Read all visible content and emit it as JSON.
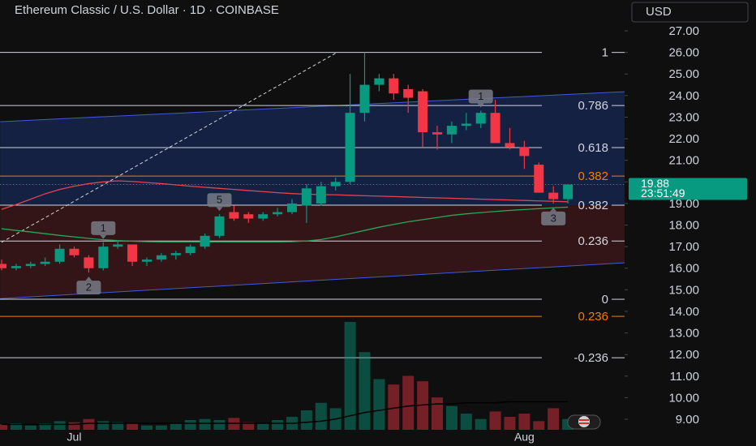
{
  "chart_data": {
    "type": "candlestick",
    "title": "Ethereum Classic / U.S. Dollar · 1D · COINBASE",
    "currency_button": "USD",
    "categories": [
      null,
      null,
      null,
      null,
      null,
      "Jul",
      null,
      null,
      null,
      null,
      null,
      null,
      null,
      null,
      null,
      null,
      null,
      null,
      null,
      null,
      null,
      null,
      null,
      null,
      null,
      null,
      null,
      null,
      null,
      null,
      null,
      null,
      null,
      null,
      null,
      null,
      "Aug",
      null,
      null,
      null
    ],
    "open": [
      16.2,
      16.0,
      16.1,
      16.2,
      16.3,
      16.9,
      16.5,
      16.0,
      17.0,
      17.1,
      16.3,
      16.4,
      16.6,
      16.7,
      17.0,
      17.5,
      18.6,
      18.5,
      18.3,
      18.5,
      18.6,
      18.9,
      19.0,
      19.8,
      20.0,
      23.2,
      24.5,
      24.8,
      24.3,
      24.2,
      22.3,
      22.2,
      22.6,
      22.7,
      23.2,
      21.8,
      21.6,
      20.8,
      19.5,
      19.2
    ],
    "high": [
      16.4,
      16.2,
      16.3,
      16.5,
      17.1,
      17.0,
      16.6,
      17.2,
      17.3,
      17.1,
      16.5,
      16.7,
      16.8,
      17.1,
      17.6,
      18.5,
      18.9,
      18.6,
      18.6,
      18.8,
      19.2,
      19.9,
      20.0,
      20.2,
      25.0,
      26.0,
      25.0,
      25.0,
      24.5,
      24.3,
      22.6,
      22.8,
      23.2,
      23.3,
      23.8,
      22.5,
      21.9,
      20.9,
      19.8,
      19.9
    ],
    "low": [
      15.9,
      15.9,
      16.0,
      16.1,
      16.2,
      16.5,
      15.8,
      15.9,
      16.9,
      16.1,
      16.1,
      16.3,
      16.4,
      16.6,
      16.9,
      17.4,
      18.2,
      18.1,
      18.2,
      18.4,
      18.5,
      18.1,
      18.9,
      19.6,
      19.9,
      22.8,
      24.2,
      23.8,
      23.2,
      21.6,
      21.5,
      21.8,
      22.4,
      22.5,
      21.8,
      21.5,
      20.6,
      19.5,
      19.0,
      19.0
    ],
    "close": [
      16.0,
      16.1,
      16.2,
      16.3,
      16.9,
      16.6,
      16.0,
      17.0,
      17.1,
      16.3,
      16.4,
      16.6,
      16.7,
      17.0,
      17.5,
      18.4,
      18.3,
      18.3,
      18.5,
      18.6,
      19.0,
      19.7,
      19.8,
      20.0,
      23.2,
      24.5,
      24.8,
      24.1,
      23.9,
      22.3,
      22.2,
      22.6,
      22.7,
      23.2,
      21.8,
      21.6,
      21.2,
      19.5,
      19.2,
      19.88
    ],
    "up_color": "#089981",
    "down_color": "#f23645",
    "volume": [
      5,
      6,
      4,
      6,
      8,
      7,
      10,
      8,
      7,
      6,
      4,
      4,
      6,
      9,
      10,
      9,
      11,
      7,
      6,
      9,
      12,
      18,
      25,
      20,
      100,
      72,
      47,
      42,
      50,
      45,
      30,
      22,
      15,
      10,
      17,
      12,
      15,
      8,
      20,
      10
    ],
    "volume_lim": [
      0,
      100
    ],
    "volume_ma": [
      5,
      5,
      5,
      5,
      5,
      5,
      6,
      6,
      6,
      6,
      6,
      6,
      6,
      6,
      6,
      6,
      6,
      6,
      6,
      6,
      6,
      7,
      8,
      10,
      13,
      16,
      18,
      20,
      22,
      23,
      24,
      24,
      25,
      25,
      25,
      26,
      26,
      26,
      26,
      26
    ],
    "ma_lines": [
      {
        "color": "#26a65b",
        "values": [
          17.83,
          17.75,
          17.68,
          17.6,
          17.52,
          17.45,
          17.38,
          17.32,
          17.28,
          17.25,
          17.23,
          17.22,
          17.22,
          17.22,
          17.22,
          17.22,
          17.22,
          17.22,
          17.22,
          17.22,
          17.23,
          17.26,
          17.33,
          17.45,
          17.6,
          17.75,
          17.9,
          18.03,
          18.15,
          18.25,
          18.35,
          18.45,
          18.52,
          18.58,
          18.63,
          18.68,
          18.72,
          18.76,
          18.8,
          18.83
        ]
      },
      {
        "color": "#e0454f",
        "values": [
          18.73,
          18.95,
          19.2,
          19.45,
          19.65,
          19.8,
          19.92,
          20.0,
          20.05,
          20.02,
          19.97,
          19.92,
          19.86,
          19.8,
          19.75,
          19.7,
          19.65,
          19.6,
          19.55,
          19.5,
          19.46,
          19.43,
          19.41,
          19.4,
          19.38,
          19.36,
          19.34,
          19.32,
          19.3,
          19.28,
          19.26,
          19.24,
          19.22,
          19.2,
          19.18,
          19.16,
          19.14,
          19.12,
          19.1,
          19.08
        ]
      }
    ],
    "channel": {
      "x": [
        -0.1,
        42.9
      ],
      "upper": [
        22.79,
        24.18
      ],
      "lower": [
        14.59,
        16.25
      ],
      "color": "#3f5bd9"
    },
    "dashed_line": {
      "x": [
        0,
        23.1
      ],
      "y": [
        17.2,
        26.0
      ]
    },
    "fib_levels": [
      {
        "level": 1,
        "price": 26.0,
        "color": "#d1d4dc"
      },
      {
        "level": 0.786,
        "price": 23.54,
        "color": "#d1d4dc"
      },
      {
        "level": 0.618,
        "price": 21.59,
        "color": "#d1d4dc"
      },
      {
        "level": 0.382,
        "price": 20.27,
        "color": "#f57c00"
      },
      {
        "level": 0.382,
        "price": 18.92,
        "color": "#d1d4dc"
      },
      {
        "level": 0.236,
        "price": 17.26,
        "color": "#d1d4dc"
      },
      {
        "level": 0,
        "price": 14.56,
        "color": "#d1d4dc"
      },
      {
        "level": 0.236,
        "price": 13.77,
        "color": "#f57c00"
      },
      {
        "level": -0.236,
        "price": 11.85,
        "color": "#d1d4dc"
      }
    ],
    "annotations": [
      {
        "text": "1",
        "index": 7,
        "side": "above"
      },
      {
        "text": "2",
        "index": 6,
        "side": "below"
      },
      {
        "text": "5",
        "index": 15,
        "side": "above"
      },
      {
        "text": "1",
        "index": 33,
        "side": "above"
      },
      {
        "text": "3",
        "index": 38,
        "side": "below"
      }
    ],
    "last_price": 19.88,
    "countdown": "23:51:49",
    "ylim": [
      7.76,
      28.43
    ],
    "yticks": [
      {
        "value": 9,
        "label": "9.00"
      },
      {
        "value": 10,
        "label": "10.00"
      },
      {
        "value": 11,
        "label": "11.00"
      },
      {
        "value": 12,
        "label": "12.00"
      },
      {
        "value": 13,
        "label": "13.00"
      },
      {
        "value": 14,
        "label": "14.00"
      },
      {
        "value": 15,
        "label": "15.00"
      },
      {
        "value": 16,
        "label": "16.00"
      },
      {
        "value": 17,
        "label": "17.00"
      },
      {
        "value": 18,
        "label": "18.00"
      },
      {
        "value": 19,
        "label": "19.00"
      },
      {
        "value": 20,
        "label": "20.00"
      },
      {
        "value": 21,
        "label": "21.00"
      },
      {
        "value": 22,
        "label": "22.00"
      },
      {
        "value": 23,
        "label": "23.00"
      },
      {
        "value": 24,
        "label": "24.00"
      },
      {
        "value": 25,
        "label": "25.00"
      },
      {
        "value": 26,
        "label": "26.00"
      },
      {
        "value": 27,
        "label": "27.00"
      }
    ]
  }
}
